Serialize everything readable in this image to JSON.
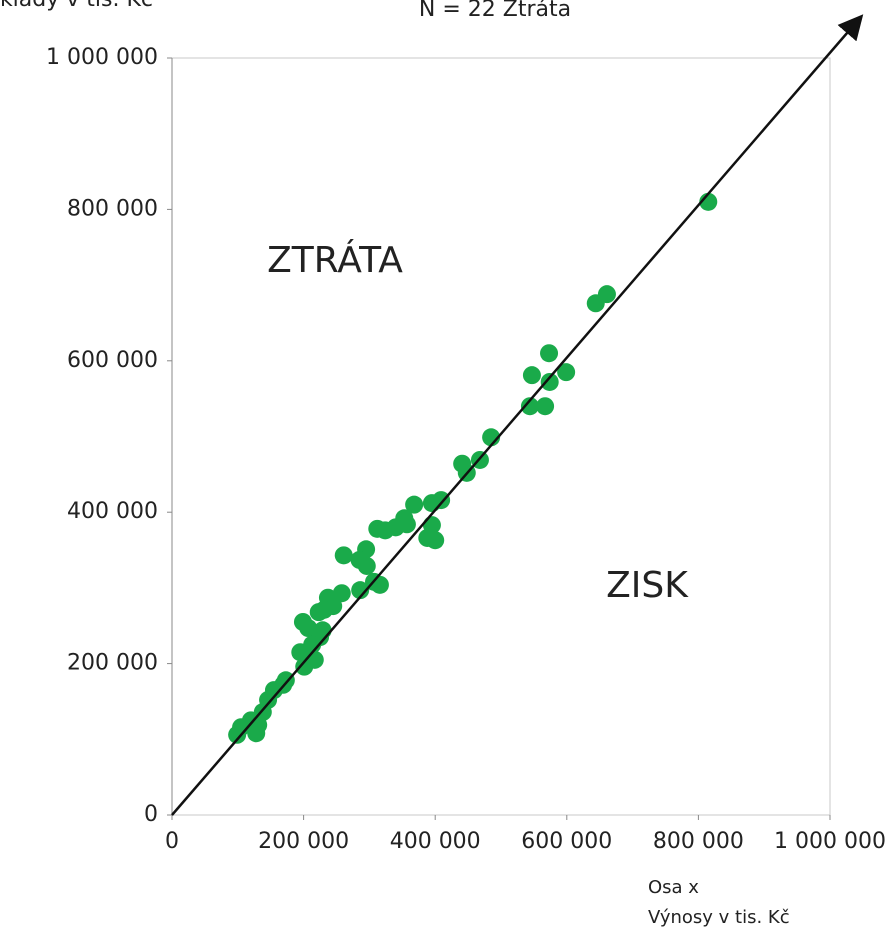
{
  "chart_data": {
    "type": "scatter",
    "title": "N = 22 Ztráta",
    "y_label": "Náklady v tis. Kč",
    "x_label": [
      "Osa x",
      "Výnosy v tis. Kč"
    ],
    "annotations": [
      "ZTRÁTA",
      "ZISK"
    ],
    "color": "#1aaa4a",
    "xlim": [
      0,
      1000000
    ],
    "ylim": [
      0,
      1000000
    ],
    "xticks": [
      0,
      {
        "value": 200000,
        "label": "200 000"
      },
      {
        "value": 400000,
        "label": "400 000"
      },
      {
        "value": 600000,
        "label": "600 000"
      },
      {
        "value": 800000,
        "label": "800 000"
      },
      {
        "value": 1000000,
        "label": "1 000 000"
      }
    ],
    "yticks": [
      0,
      {
        "value": 200000,
        "label": "200 000"
      },
      {
        "value": 400000,
        "label": "400 000"
      },
      {
        "value": 600000,
        "label": "600 000"
      },
      {
        "value": 800000,
        "label": "800 000"
      },
      {
        "value": 1000000,
        "label": "1 000 000"
      }
    ],
    "x": [
      815000,
      644000,
      661000,
      573000,
      547000,
      574000,
      599000,
      544000,
      567000,
      485000,
      468000,
      441000,
      448000,
      409000,
      395000,
      368000,
      353000,
      340000,
      395000,
      388000,
      400000,
      357000,
      312000,
      324000,
      295000,
      285000,
      296000,
      261000,
      307000,
      316000,
      286000,
      237000,
      258000,
      223000,
      245000,
      231000,
      199000,
      207000,
      229000,
      225000,
      213000,
      195000,
      217000,
      201000,
      173000,
      169000,
      155000,
      146000,
      138000,
      120000,
      131000,
      105000,
      128000,
      99000
    ],
    "values": [
      810000,
      676000,
      688000,
      610000,
      581000,
      572000,
      585000,
      540000,
      540000,
      499000,
      469000,
      464000,
      452000,
      416000,
      412000,
      410000,
      392000,
      380000,
      383000,
      366000,
      363000,
      384000,
      378000,
      376000,
      351000,
      337000,
      329000,
      343000,
      308000,
      304000,
      297000,
      287000,
      293000,
      268000,
      276000,
      271000,
      255000,
      247000,
      244000,
      235000,
      225000,
      215000,
      205000,
      196000,
      178000,
      172000,
      165000,
      152000,
      136000,
      125000,
      119000,
      116000,
      108000,
      106000
    ]
  }
}
